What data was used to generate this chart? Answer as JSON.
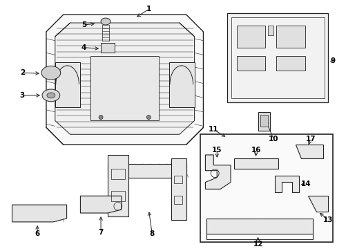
{
  "bg_color": "#ffffff",
  "line_color": "#222222",
  "text_color": "#000000",
  "fig_width": 4.89,
  "fig_height": 3.6,
  "dpi": 100,
  "label_fontsize": 7.5,
  "lw": 0.75
}
